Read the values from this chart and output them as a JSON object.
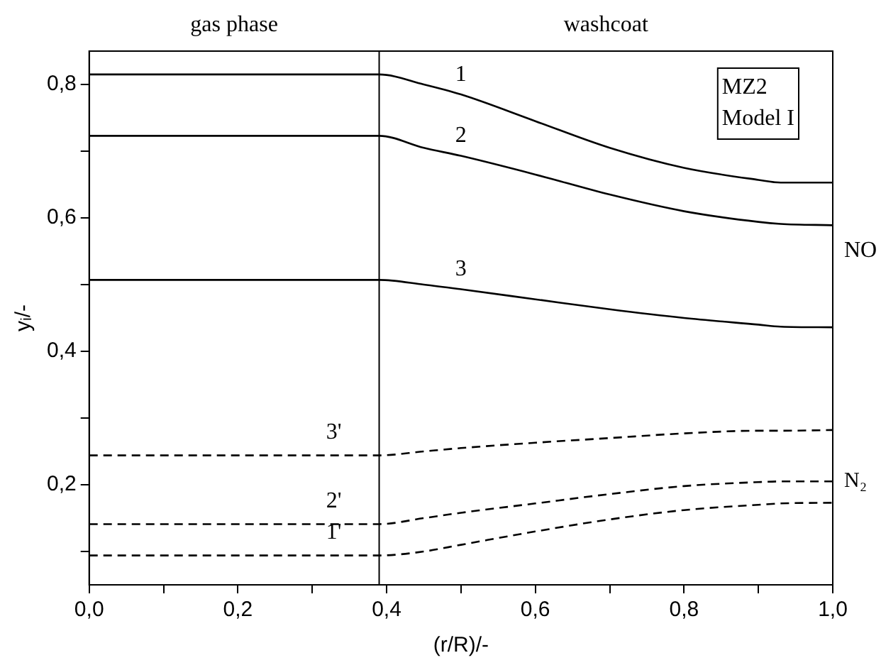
{
  "chart_data": {
    "type": "line",
    "xlabel": "(r/R)/-",
    "ylabel": "yᵢ/-",
    "x": [
      0,
      0.39,
      0.45,
      0.5,
      0.6,
      0.7,
      0.8,
      0.9,
      0.93,
      1.0
    ],
    "series": [
      {
        "color": "#000000",
        "line_style": "solid",
        "values": [
          0.815,
          0.815,
          0.8,
          0.785,
          0.745,
          0.705,
          0.675,
          0.657,
          0.653,
          0.653
        ]
      },
      {
        "color": "#000000",
        "line_style": "solid",
        "values": [
          0.723,
          0.723,
          0.705,
          0.693,
          0.665,
          0.635,
          0.61,
          0.594,
          0.591,
          0.589
        ]
      },
      {
        "color": "#000000",
        "line_style": "solid",
        "values": [
          0.507,
          0.507,
          0.5,
          0.493,
          0.478,
          0.463,
          0.45,
          0.44,
          0.437,
          0.436
        ]
      },
      {
        "color": "#000000",
        "line_style": "dashed",
        "values": [
          0.244,
          0.244,
          0.25,
          0.255,
          0.263,
          0.27,
          0.277,
          0.281,
          0.281,
          0.282
        ]
      },
      {
        "color": "#000000",
        "line_style": "dashed",
        "values": [
          0.141,
          0.141,
          0.15,
          0.158,
          0.172,
          0.186,
          0.198,
          0.204,
          0.205,
          0.205
        ]
      },
      {
        "color": "#000000",
        "line_style": "dashed",
        "values": [
          0.094,
          0.094,
          0.1,
          0.11,
          0.13,
          0.148,
          0.162,
          0.17,
          0.172,
          0.173
        ]
      }
    ],
    "xlim": [
      0,
      1.0
    ],
    "xticks": [
      {
        "value": 0,
        "label": "0,0"
      },
      {
        "value": 0.1,
        "label": null
      },
      {
        "value": 0.2,
        "label": "0,2"
      },
      {
        "value": 0.3,
        "label": null
      },
      {
        "value": 0.4,
        "label": "0,4"
      },
      {
        "value": 0.5,
        "label": null
      },
      {
        "value": 0.6,
        "label": "0,6"
      },
      {
        "value": 0.7,
        "label": null
      },
      {
        "value": 0.8,
        "label": "0,8"
      },
      {
        "value": 0.9,
        "label": null
      },
      {
        "value": 1.0,
        "label": "1,0"
      }
    ],
    "ylim": [
      0.05,
      0.85
    ],
    "yticks": [
      {
        "value": 0.1,
        "label": null
      },
      {
        "value": 0.2,
        "label": "0,2"
      },
      {
        "value": 0.3,
        "label": null
      },
      {
        "value": 0.4,
        "label": "0,4"
      },
      {
        "value": 0.5,
        "label": null
      },
      {
        "value": 0.6,
        "label": "0,6"
      },
      {
        "value": 0.7,
        "label": null
      },
      {
        "value": 0.8,
        "label": "0,8"
      }
    ],
    "ref_lines": [
      {
        "axis": "x",
        "value": 0.39,
        "color": "#000000"
      }
    ],
    "annotations": [
      "gas phase",
      "washcoat",
      "MZ2\nModel I",
      "NO",
      "N₂",
      "1",
      "2",
      "3",
      "1'",
      "2'",
      "3'"
    ],
    "grid": false,
    "legend": false,
    "marker": "none"
  }
}
